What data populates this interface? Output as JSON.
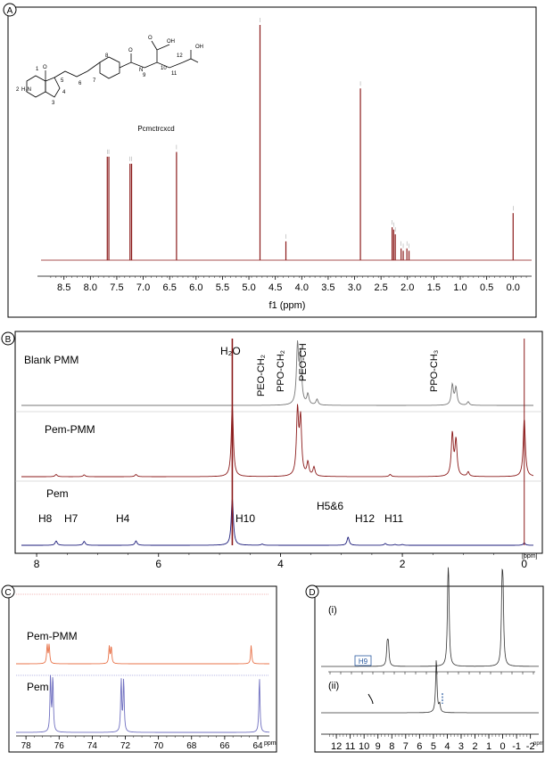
{
  "panels": {
    "A": "A",
    "B": "B",
    "C": "C",
    "D": "D"
  },
  "structure": {
    "caption": "Pcmctrcxcd",
    "atoms": [
      "1",
      "2",
      "H₂N",
      "3",
      "4",
      "5",
      "6",
      "7",
      "8",
      "9",
      "10",
      "11",
      "12",
      "OH",
      "OH",
      "OH",
      "O",
      "O",
      "O",
      "N",
      "H",
      "H",
      "N",
      "H",
      "N"
    ]
  },
  "chart_data": [
    {
      "panel": "A",
      "type": "line",
      "xlabel": "f1 (ppm)",
      "ylabel": "",
      "xlim": [
        8.9,
        -0.35
      ],
      "x_ticks": [
        8.5,
        8.0,
        7.5,
        7.0,
        6.5,
        6.0,
        5.5,
        5.0,
        4.5,
        4.0,
        3.5,
        3.0,
        2.5,
        2.0,
        1.5,
        1.0,
        0.5,
        0.0
      ],
      "x_tick_labels": [
        "8.5",
        "8.0",
        "7.5",
        "7.0",
        "6.5",
        "6.0",
        "5.5",
        "5.0",
        "4.5",
        "4.0",
        "3.5",
        "3.0",
        "2.5",
        "2.0",
        "1.5",
        "1.0",
        "0.5",
        "0.0"
      ],
      "color": "#8b1a1a",
      "peaks": [
        {
          "ppm": 7.68,
          "height": 0.44
        },
        {
          "ppm": 7.65,
          "height": 0.44
        },
        {
          "ppm": 7.25,
          "height": 0.41
        },
        {
          "ppm": 7.22,
          "height": 0.41
        },
        {
          "ppm": 6.37,
          "height": 0.46
        },
        {
          "ppm": 4.79,
          "height": 1.0
        },
        {
          "ppm": 4.3,
          "height": 0.08
        },
        {
          "ppm": 2.89,
          "height": 0.73
        },
        {
          "ppm": 2.29,
          "height": 0.14
        },
        {
          "ppm": 2.26,
          "height": 0.13
        },
        {
          "ppm": 2.23,
          "height": 0.11
        },
        {
          "ppm": 2.12,
          "height": 0.05
        },
        {
          "ppm": 2.08,
          "height": 0.04
        },
        {
          "ppm": 2.01,
          "height": 0.05
        },
        {
          "ppm": 1.97,
          "height": 0.04
        },
        {
          "ppm": 0.0,
          "height": 0.2
        }
      ]
    },
    {
      "panel": "B",
      "type": "line",
      "xlabel": "[ppm]",
      "ylabel": "",
      "xlim": [
        8.25,
        -0.15
      ],
      "x_ticks": [
        8,
        6,
        4,
        2,
        0
      ],
      "x_tick_labels": [
        "8",
        "6",
        "4",
        "2",
        "0"
      ],
      "series": [
        {
          "name": "Blank PMM",
          "color": "#777777",
          "peaks": [
            {
              "ppm": 3.72,
              "height": 1.0
            },
            {
              "ppm": 3.67,
              "height": 0.85
            },
            {
              "ppm": 3.55,
              "height": 0.18
            },
            {
              "ppm": 3.4,
              "height": 0.1
            },
            {
              "ppm": 1.18,
              "height": 0.35
            },
            {
              "ppm": 1.12,
              "height": 0.3
            },
            {
              "ppm": 0.92,
              "height": 0.06
            }
          ],
          "annotations": [
            "PEO-CH₂",
            "PPO-CH₂",
            "PEO-CH",
            "PPO-CH₃"
          ]
        },
        {
          "name": "Pem-PMM",
          "color": "#8b1a1a",
          "peaks": [
            {
              "ppm": 7.68,
              "height": 0.05
            },
            {
              "ppm": 7.22,
              "height": 0.04
            },
            {
              "ppm": 6.37,
              "height": 0.05
            },
            {
              "ppm": 4.79,
              "height": 1.6
            },
            {
              "ppm": 3.72,
              "height": 1.45
            },
            {
              "ppm": 3.67,
              "height": 1.25
            },
            {
              "ppm": 3.55,
              "height": 0.3
            },
            {
              "ppm": 3.45,
              "height": 0.2
            },
            {
              "ppm": 2.2,
              "height": 0.05
            },
            {
              "ppm": 1.18,
              "height": 0.95
            },
            {
              "ppm": 1.12,
              "height": 0.8
            },
            {
              "ppm": 0.92,
              "height": 0.1
            },
            {
              "ppm": 0.0,
              "height": 1.3
            }
          ]
        },
        {
          "name": "Pem",
          "color": "#1a1a7a",
          "peaks": [
            {
              "ppm": 7.68,
              "height": 0.22
            },
            {
              "ppm": 7.22,
              "height": 0.2
            },
            {
              "ppm": 6.37,
              "height": 0.22
            },
            {
              "ppm": 4.79,
              "height": 2.4
            },
            {
              "ppm": 4.3,
              "height": 0.06
            },
            {
              "ppm": 2.89,
              "height": 0.42
            },
            {
              "ppm": 2.28,
              "height": 0.09
            },
            {
              "ppm": 2.12,
              "height": 0.04
            },
            {
              "ppm": 2.0,
              "height": 0.04
            },
            {
              "ppm": 0.0,
              "height": 0.12
            }
          ],
          "annotations": [
            "H8",
            "H7",
            "H4",
            "H10",
            "H5&6",
            "H12",
            "H11"
          ]
        }
      ],
      "center_label": "H₂O"
    },
    {
      "panel": "C",
      "type": "line",
      "xlabel": "ppm",
      "ylabel": "",
      "xlim": [
        78.6,
        63.3
      ],
      "x_ticks": [
        78,
        76,
        74,
        72,
        70,
        68,
        66,
        64
      ],
      "x_tick_labels": [
        "78",
        "76",
        "74",
        "72",
        "70",
        "68",
        "66",
        "64"
      ],
      "series": [
        {
          "name": "Pem-PMM",
          "color": "#e8734a",
          "peaks": [
            {
              "ppm": 76.72,
              "height": 0.55
            },
            {
              "ppm": 76.6,
              "height": 0.55
            },
            {
              "ppm": 72.97,
              "height": 0.5
            },
            {
              "ppm": 72.85,
              "height": 0.5
            },
            {
              "ppm": 64.4,
              "height": 0.55
            }
          ]
        },
        {
          "name": "Pem",
          "color": "#7070c0",
          "peaks": [
            {
              "ppm": 76.52,
              "height": 1.0
            },
            {
              "ppm": 76.38,
              "height": 1.0
            },
            {
              "ppm": 72.25,
              "height": 0.95
            },
            {
              "ppm": 72.1,
              "height": 0.95
            },
            {
              "ppm": 63.9,
              "height": 1.0
            }
          ]
        }
      ]
    },
    {
      "panel": "D",
      "type": "line",
      "xlabel": "ppm",
      "ylabel": "",
      "xlim": [
        13.1,
        -2.6
      ],
      "x_ticks": [
        12,
        11,
        10,
        9,
        8,
        7,
        6,
        5,
        4,
        3,
        2,
        1,
        0,
        -1,
        -2
      ],
      "x_tick_labels": [
        "12",
        "11",
        "10",
        "9",
        "8",
        "7",
        "6",
        "5",
        "4",
        "3",
        "2",
        "1",
        "0",
        "-1",
        "-2"
      ],
      "series": [
        {
          "name": "(i)",
          "color": "#333333",
          "annotation": "H9",
          "peaks": [
            {
              "ppm": 8.33,
              "height": 0.28
            },
            {
              "ppm": 8.25,
              "height": 0.28
            },
            {
              "ppm": 3.95,
              "height": 0.85
            },
            {
              "ppm": 3.9,
              "height": 0.8
            },
            {
              "ppm": 0.05,
              "height": 0.95
            },
            {
              "ppm": -0.02,
              "height": 0.9
            }
          ]
        },
        {
          "name": "(ii)",
          "color": "#333333",
          "peaks": [
            {
              "ppm": 4.79,
              "height": 1.0
            },
            {
              "ppm": 4.55,
              "height": 0.15
            }
          ]
        }
      ]
    }
  ]
}
